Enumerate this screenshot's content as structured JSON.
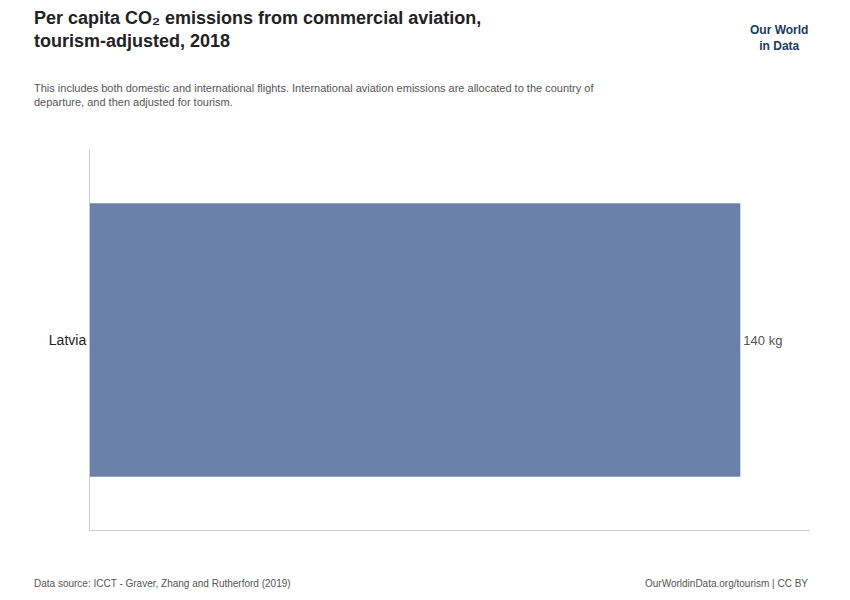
{
  "chart_data": {
    "type": "bar",
    "orientation": "horizontal",
    "title": "Per capita CO₂ emissions from commercial aviation,\ntourism-adjusted, 2018",
    "subtitle": "This includes both domestic and international flights. International aviation emissions are allocated to the country of\ndeparture, and then adjusted for tourism.",
    "categories": [
      "Latvia"
    ],
    "values": [
      140
    ],
    "value_labels": [
      "140 kg"
    ],
    "data_labels": true,
    "color": "#6b80a8",
    "xlim": [
      0,
      155
    ],
    "tick_labels": "y",
    "grid": false,
    "annotations": [
      "Our World\nin Data",
      "Data source: ICCT - Graver, Zhang and Rutherford (2019)",
      "OurWorldinData.org/tourism | CC BY"
    ]
  }
}
